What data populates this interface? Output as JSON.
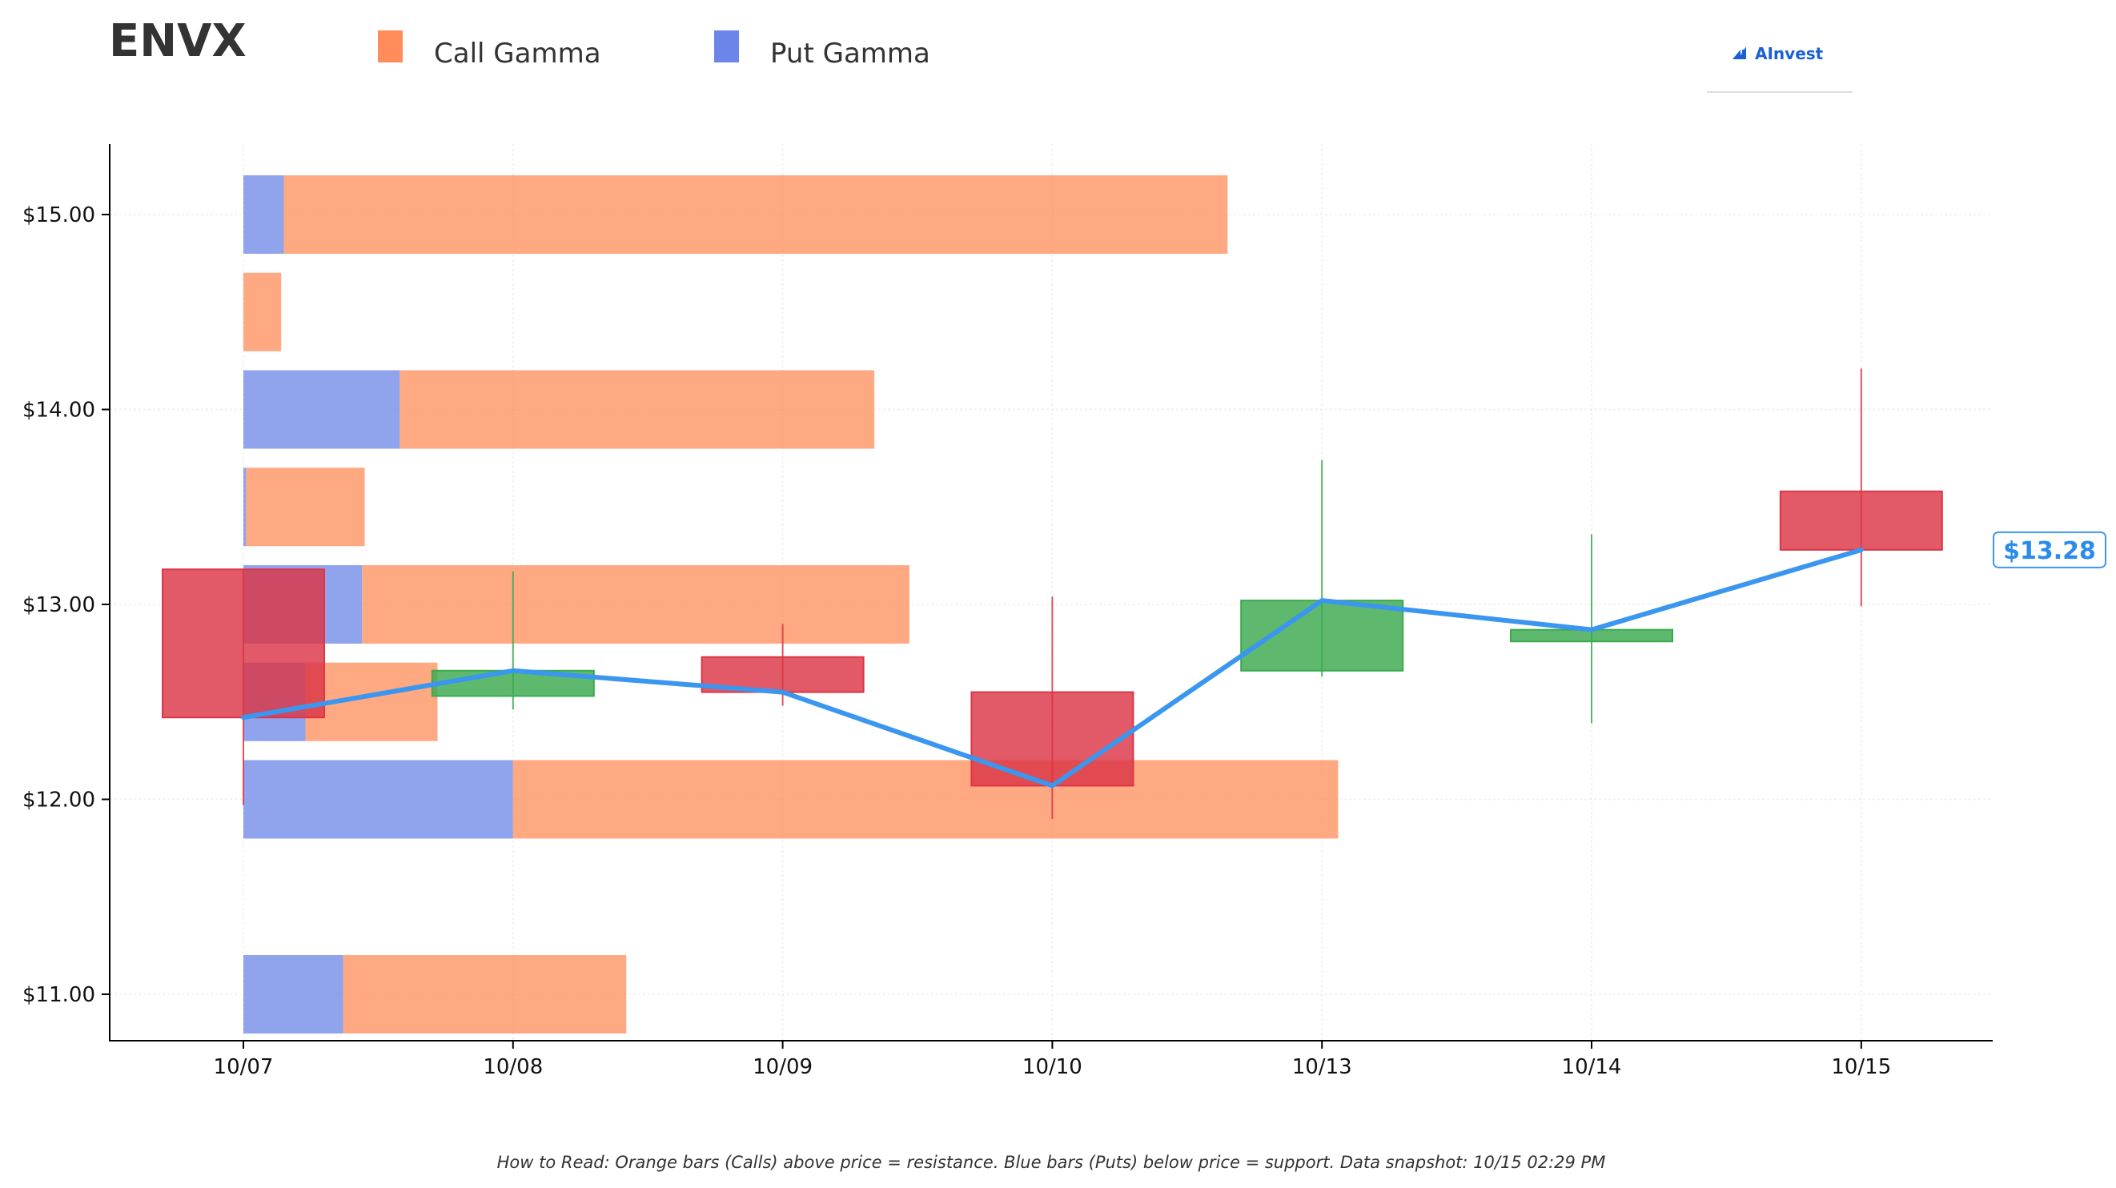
{
  "header": {
    "ticker": "ENVX",
    "legend": [
      {
        "label": "Call Gamma",
        "color": "#FF8C5A"
      },
      {
        "label": "Put Gamma",
        "color": "#6B86E8"
      }
    ],
    "brand": "AInvest",
    "brand_color": "#1a5fd6"
  },
  "footer": {
    "note": "How to Read: Orange bars (Calls) above price = resistance. Blue bars (Puts) below price = support. Data snapshot: 10/15 02:29 PM"
  },
  "chart_data": {
    "type": "candlestick",
    "categories": [
      "10/07",
      "10/08",
      "10/09",
      "10/10",
      "10/13",
      "10/14",
      "10/15"
    ],
    "y_tick_labels": [
      "$11.00",
      "$12.00",
      "$13.00",
      "$14.00",
      "$15.00"
    ],
    "y_ticks": [
      11,
      12,
      13,
      14,
      15
    ],
    "ylim": [
      10.75,
      15.35
    ],
    "grid": true,
    "colors": {
      "up": "#3AAA4E",
      "down": "#DC3545",
      "price_line": "#3A96EE",
      "call": "#FF8C5A",
      "put": "#6B86E8"
    },
    "candles": [
      {
        "date": "10/07",
        "open": 13.18,
        "high": 13.18,
        "low": 11.97,
        "close": 12.42
      },
      {
        "date": "10/08",
        "open": 12.53,
        "high": 13.17,
        "low": 12.46,
        "close": 12.66
      },
      {
        "date": "10/09",
        "open": 12.73,
        "high": 12.9,
        "low": 12.48,
        "close": 12.55
      },
      {
        "date": "10/10",
        "open": 12.55,
        "high": 13.04,
        "low": 11.9,
        "close": 12.07
      },
      {
        "date": "10/13",
        "open": 12.66,
        "high": 13.74,
        "low": 12.63,
        "close": 13.02
      },
      {
        "date": "10/14",
        "open": 12.81,
        "high": 13.36,
        "low": 12.39,
        "close": 12.87
      },
      {
        "date": "10/15",
        "open": 13.58,
        "high": 14.21,
        "low": 12.99,
        "close": 13.28
      }
    ],
    "price_line": [
      12.42,
      12.66,
      12.55,
      12.07,
      13.02,
      12.87,
      13.28
    ],
    "current_price": 13.28,
    "current_price_label": "$13.28",
    "gamma_unit": "x-axis category widths",
    "gamma_levels": [
      {
        "strike": 15.0,
        "put": 0.15,
        "call": 3.5
      },
      {
        "strike": 14.5,
        "put": 0.0,
        "call": 0.14
      },
      {
        "strike": 14.0,
        "put": 0.58,
        "call": 1.76
      },
      {
        "strike": 13.5,
        "put": 0.01,
        "call": 0.44
      },
      {
        "strike": 13.0,
        "put": 0.44,
        "call": 2.03
      },
      {
        "strike": 12.5,
        "put": 0.23,
        "call": 0.49
      },
      {
        "strike": 12.0,
        "put": 1.0,
        "call": 3.06
      },
      {
        "strike": 11.0,
        "put": 0.37,
        "call": 1.05
      }
    ]
  }
}
